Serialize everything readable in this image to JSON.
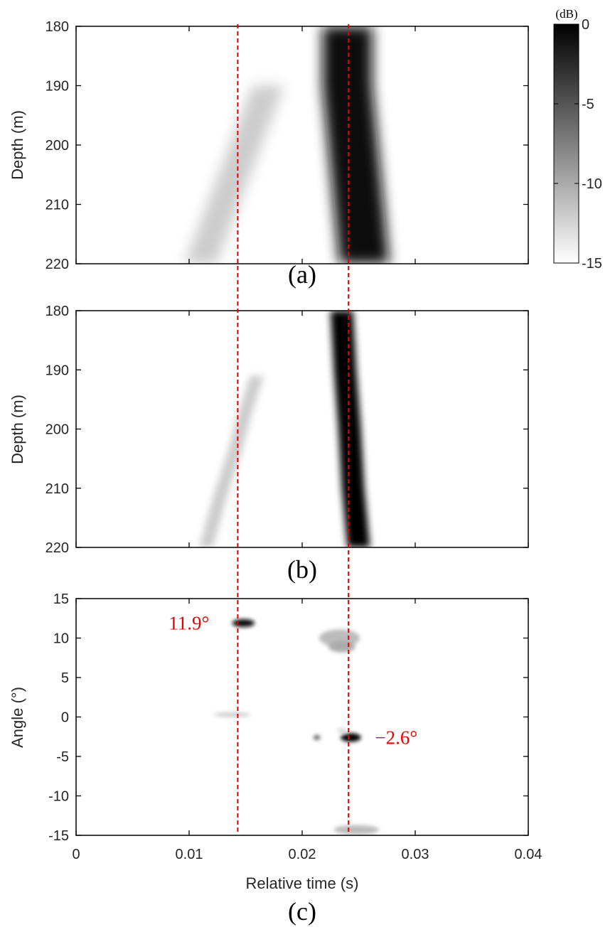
{
  "chart_data": [
    {
      "type": "heatmap",
      "panel_label": "(a)",
      "ylabel": "Depth (m)",
      "xlim": [
        0,
        0.04
      ],
      "ylim": [
        180,
        220
      ],
      "y_inverted": true,
      "yticks": [
        180,
        190,
        200,
        210,
        220
      ],
      "x_tick_labels_shown": false,
      "bands": [
        {
          "name": "",
          "level_db": -12,
          "points": [
            [
              0.017,
              190
            ],
            [
              0.016,
              195
            ],
            [
              0.015,
              200
            ],
            [
              0.014,
              205
            ],
            [
              0.013,
              210
            ],
            [
              0.012,
              215
            ],
            [
              0.011,
              220
            ]
          ],
          "halfwidth_s": 0.0014
        },
        {
          "name": "",
          "level_db": -1,
          "points": [
            [
              0.024,
              180
            ],
            [
              0.024,
              190
            ],
            [
              0.0245,
              200
            ],
            [
              0.025,
              210
            ],
            [
              0.0255,
              220
            ]
          ],
          "halfwidth_s": 0.0022
        }
      ]
    },
    {
      "type": "heatmap",
      "panel_label": "(b)",
      "ylabel": "Depth (m)",
      "xlim": [
        0,
        0.04
      ],
      "ylim": [
        180,
        220
      ],
      "y_inverted": true,
      "yticks": [
        180,
        190,
        200,
        210,
        220
      ],
      "x_tick_labels_shown": false,
      "bands": [
        {
          "name": "",
          "level_db": -12,
          "points": [
            [
              0.016,
              191
            ],
            [
              0.015,
              197
            ],
            [
              0.014,
              204
            ],
            [
              0.0128,
              211
            ],
            [
              0.0115,
              220
            ]
          ],
          "halfwidth_s": 0.0006
        },
        {
          "name": "",
          "level_db": 0,
          "points": [
            [
              0.0235,
              180
            ],
            [
              0.0238,
              190
            ],
            [
              0.0242,
              200
            ],
            [
              0.0245,
              210
            ],
            [
              0.025,
              220
            ]
          ],
          "halfwidth_s": 0.001
        }
      ]
    },
    {
      "type": "heatmap",
      "panel_label": "(c)",
      "xlabel": "Relative time (s)",
      "ylabel": "Angle (°)",
      "xlim": [
        0,
        0.04
      ],
      "ylim": [
        -15,
        15
      ],
      "xticks": [
        0,
        0.01,
        0.02,
        0.03,
        0.04
      ],
      "xtick_labels": [
        "0",
        "0.01",
        "0.02",
        "0.03",
        "0.04"
      ],
      "yticks": [
        15,
        10,
        5,
        0,
        -5,
        -10,
        -15
      ],
      "blobs": [
        {
          "x": 0.0148,
          "y": 11.9,
          "rx": 0.001,
          "ry": 0.5,
          "level_db": -1
        },
        {
          "x": 0.0233,
          "y": 10.0,
          "rx": 0.0018,
          "ry": 1.1,
          "level_db": -11
        },
        {
          "x": 0.0235,
          "y": 8.9,
          "rx": 0.0012,
          "ry": 0.7,
          "level_db": -10
        },
        {
          "x": 0.0138,
          "y": 0.3,
          "rx": 0.0016,
          "ry": 0.3,
          "level_db": -12
        },
        {
          "x": 0.0243,
          "y": -2.6,
          "rx": 0.0009,
          "ry": 0.55,
          "level_db": 0
        },
        {
          "x": 0.0213,
          "y": -2.6,
          "rx": 0.0003,
          "ry": 0.3,
          "level_db": -5
        },
        {
          "x": 0.0235,
          "y": -1.7,
          "rx": 0.0004,
          "ry": 0.25,
          "level_db": -12
        },
        {
          "x": 0.0248,
          "y": -14.3,
          "rx": 0.002,
          "ry": 0.6,
          "level_db": -11
        }
      ],
      "annotations": [
        {
          "text": "11.9°",
          "x": 0.0148,
          "y": 11.9,
          "side": "left"
        },
        {
          "text": "−2.6°",
          "x": 0.0243,
          "y": -2.6,
          "side": "right"
        }
      ]
    }
  ],
  "reference_lines_x": [
    0.0143,
    0.0241
  ],
  "reference_line_color": "#e60000",
  "colorbar": {
    "unit": "(dB)",
    "range": [
      -15,
      0
    ],
    "ticks": [
      0,
      -5,
      -10,
      -15
    ],
    "colormap": "gray, white at -15 dB to black at 0 dB"
  }
}
